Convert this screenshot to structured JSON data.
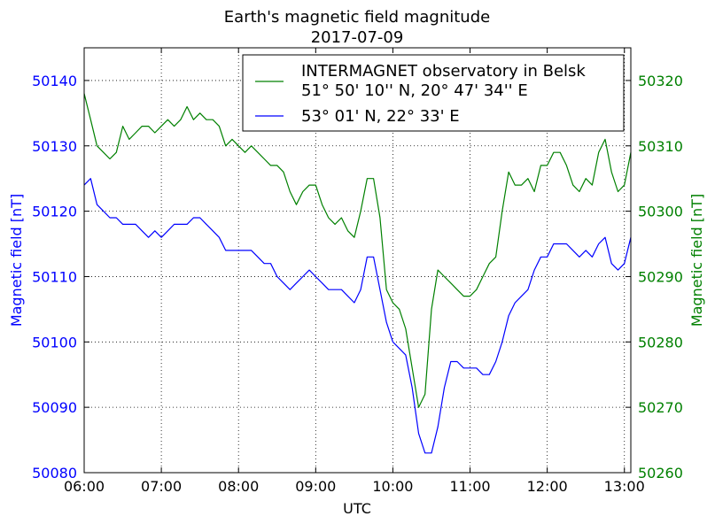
{
  "chart_data": {
    "type": "line",
    "title": "Earth's magnetic field magnitude",
    "subtitle": "2017-07-09",
    "xlabel": "UTC",
    "ylabel_left": "Magnetic field [nT]",
    "ylabel_right": "Magnetic field [nT]",
    "x_ticks": [
      "06:00",
      "07:00",
      "08:00",
      "09:00",
      "10:00",
      "11:00",
      "12:00",
      "13:00"
    ],
    "xlim": [
      "06:00",
      "13:05"
    ],
    "ylim_left": [
      50080,
      50145
    ],
    "ylim_right": [
      50260,
      50325
    ],
    "y_ticks_left": [
      50080,
      50090,
      50100,
      50110,
      50120,
      50130,
      50140
    ],
    "y_ticks_right": [
      50260,
      50270,
      50280,
      50290,
      50300,
      50310,
      50320
    ],
    "grid": true,
    "legend_position": "top-right",
    "series": [
      {
        "name": "INTERMAGNET observatory in Belsk",
        "name_line2": "51° 50' 10'' N, 20° 47' 34'' E",
        "axis": "right",
        "color": "#008000",
        "x": [
          "06:00",
          "06:05",
          "06:10",
          "06:15",
          "06:20",
          "06:25",
          "06:30",
          "06:35",
          "06:40",
          "06:45",
          "06:50",
          "06:55",
          "07:00",
          "07:05",
          "07:10",
          "07:15",
          "07:20",
          "07:25",
          "07:30",
          "07:35",
          "07:40",
          "07:45",
          "07:50",
          "07:55",
          "08:00",
          "08:05",
          "08:10",
          "08:15",
          "08:20",
          "08:25",
          "08:30",
          "08:35",
          "08:40",
          "08:45",
          "08:50",
          "08:55",
          "09:00",
          "09:05",
          "09:10",
          "09:15",
          "09:20",
          "09:25",
          "09:30",
          "09:35",
          "09:40",
          "09:45",
          "09:50",
          "09:55",
          "10:00",
          "10:05",
          "10:10",
          "10:15",
          "10:20",
          "10:25",
          "10:30",
          "10:35",
          "10:40",
          "10:45",
          "10:50",
          "10:55",
          "11:00",
          "11:05",
          "11:10",
          "11:15",
          "11:20",
          "11:25",
          "11:30",
          "11:35",
          "11:40",
          "11:45",
          "11:50",
          "11:55",
          "12:00",
          "12:05",
          "12:10",
          "12:15",
          "12:20",
          "12:25",
          "12:30",
          "12:35",
          "12:40",
          "12:45",
          "12:50",
          "12:55",
          "13:00",
          "13:05"
        ],
        "values": [
          50318,
          50314,
          50310,
          50309,
          50308,
          50309,
          50313,
          50311,
          50312,
          50313,
          50313,
          50312,
          50313,
          50314,
          50313,
          50314,
          50316,
          50314,
          50315,
          50314,
          50314,
          50313,
          50310,
          50311,
          50310,
          50309,
          50310,
          50309,
          50308,
          50307,
          50307,
          50306,
          50303,
          50301,
          50303,
          50304,
          50304,
          50301,
          50299,
          50298,
          50299,
          50297,
          50296,
          50300,
          50305,
          50305,
          50299,
          50288,
          50286,
          50285,
          50282,
          50276,
          50270,
          50272,
          50285,
          50291,
          50290,
          50289,
          50288,
          50287,
          50287,
          50288,
          50290,
          50292,
          50293,
          50300,
          50306,
          50304,
          50304,
          50305,
          50303,
          50307,
          50307,
          50309,
          50309,
          50307,
          50304,
          50303,
          50305,
          50304,
          50309,
          50311,
          50306,
          50303,
          50304,
          50309
        ]
      },
      {
        "name": "53° 01' N, 22° 33' E",
        "axis": "left",
        "color": "#0000ff",
        "x": [
          "06:00",
          "06:05",
          "06:10",
          "06:15",
          "06:20",
          "06:25",
          "06:30",
          "06:35",
          "06:40",
          "06:45",
          "06:50",
          "06:55",
          "07:00",
          "07:05",
          "07:10",
          "07:15",
          "07:20",
          "07:25",
          "07:30",
          "07:35",
          "07:40",
          "07:45",
          "07:50",
          "07:55",
          "08:00",
          "08:05",
          "08:10",
          "08:15",
          "08:20",
          "08:25",
          "08:30",
          "08:35",
          "08:40",
          "08:45",
          "08:50",
          "08:55",
          "09:00",
          "09:05",
          "09:10",
          "09:15",
          "09:20",
          "09:25",
          "09:30",
          "09:35",
          "09:40",
          "09:45",
          "09:50",
          "09:55",
          "10:00",
          "10:05",
          "10:10",
          "10:15",
          "10:20",
          "10:25",
          "10:30",
          "10:35",
          "10:40",
          "10:45",
          "10:50",
          "10:55",
          "11:00",
          "11:05",
          "11:10",
          "11:15",
          "11:20",
          "11:25",
          "11:30",
          "11:35",
          "11:40",
          "11:45",
          "11:50",
          "11:55",
          "12:00",
          "12:05",
          "12:10",
          "12:15",
          "12:20",
          "12:25",
          "12:30",
          "12:35",
          "12:40",
          "12:45",
          "12:50",
          "12:55",
          "13:00",
          "13:05"
        ],
        "values": [
          50124,
          50125,
          50121,
          50120,
          50119,
          50119,
          50118,
          50118,
          50118,
          50117,
          50116,
          50117,
          50116,
          50117,
          50118,
          50118,
          50118,
          50119,
          50119,
          50118,
          50117,
          50116,
          50114,
          50114,
          50114,
          50114,
          50114,
          50113,
          50112,
          50112,
          50110,
          50109,
          50108,
          50109,
          50110,
          50111,
          50110,
          50109,
          50108,
          50108,
          50108,
          50107,
          50106,
          50108,
          50113,
          50113,
          50108,
          50103,
          50100,
          50099,
          50098,
          50093,
          50086,
          50083,
          50083,
          50087,
          50093,
          50097,
          50097,
          50096,
          50096,
          50096,
          50095,
          50095,
          50097,
          50100,
          50104,
          50106,
          50107,
          50108,
          50111,
          50113,
          50113,
          50115,
          50115,
          50115,
          50114,
          50113,
          50114,
          50113,
          50115,
          50116,
          50112,
          50111,
          50112,
          50116
        ]
      }
    ]
  }
}
